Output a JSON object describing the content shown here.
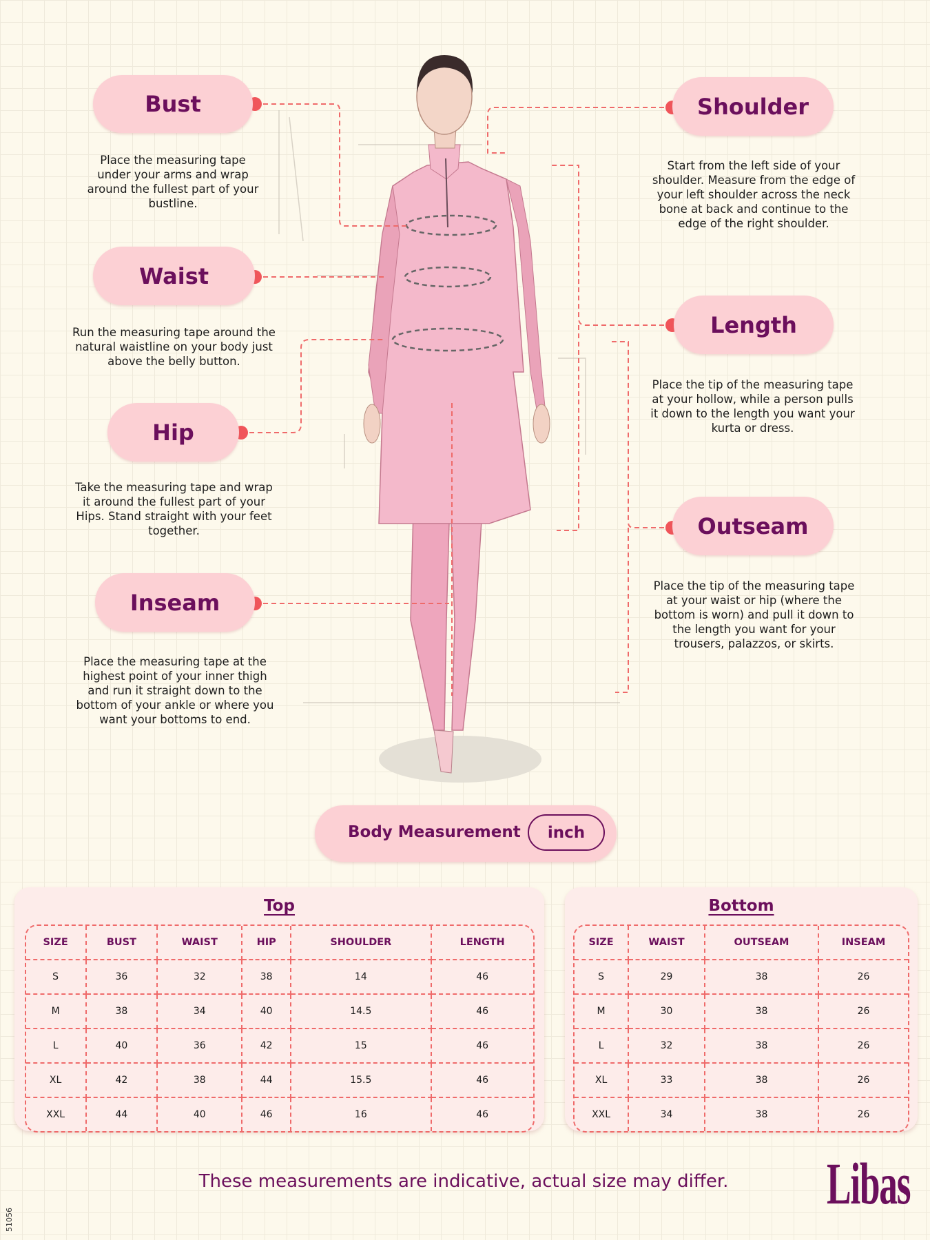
{
  "colors": {
    "background": "#fdf9ec",
    "pill": "#fcd0d4",
    "brand_purple": "#6b0f5c",
    "marker_red": "#f0555a",
    "dashed_line": "#ef6a6a"
  },
  "guides": {
    "bust": {
      "label": "Bust",
      "text": "Place the measuring tape under your arms and wrap around the fullest part of your bustline."
    },
    "waist": {
      "label": "Waist",
      "text": "Run the measuring tape around the natural waistline on your body just above the belly button."
    },
    "hip": {
      "label": "Hip",
      "text": "Take the measuring tape and wrap it around the fullest part of your Hips. Stand straight with your feet together."
    },
    "inseam": {
      "label": "Inseam",
      "text": "Place the measuring tape at the highest point of your inner thigh and run it straight down to the bottom of your ankle or where you want your bottoms to end."
    },
    "shoulder": {
      "label": "Shoulder",
      "text": "Start from the left side of your shoulder. Measure from the edge of your left shoulder across the neck bone at back and continue to the edge of the right shoulder."
    },
    "length": {
      "label": "Length",
      "text": "Place the tip of the measuring tape at your hollow, while a person pulls it down to the length you want your kurta or dress."
    },
    "outseam": {
      "label": "Outseam",
      "text": "Place the tip of the measuring tape at your waist or hip (where the bottom is worn) and pull it down to the length you want for your trousers, palazzos, or skirts."
    }
  },
  "body_measurement": {
    "label": "Body Measurement",
    "unit": "inch"
  },
  "top_table": {
    "title": "Top",
    "headers": [
      "SIZE",
      "BUST",
      "WAIST",
      "HIP",
      "SHOULDER",
      "LENGTH"
    ],
    "rows": [
      [
        "S",
        "36",
        "32",
        "38",
        "14",
        "46"
      ],
      [
        "M",
        "38",
        "34",
        "40",
        "14.5",
        "46"
      ],
      [
        "L",
        "40",
        "36",
        "42",
        "15",
        "46"
      ],
      [
        "XL",
        "42",
        "38",
        "44",
        "15.5",
        "46"
      ],
      [
        "XXL",
        "44",
        "40",
        "46",
        "16",
        "46"
      ]
    ]
  },
  "bottom_table": {
    "title": "Bottom",
    "headers": [
      "SIZE",
      "WAIST",
      "OUTSEAM",
      "INSEAM"
    ],
    "rows": [
      [
        "S",
        "29",
        "38",
        "26"
      ],
      [
        "M",
        "30",
        "38",
        "26"
      ],
      [
        "L",
        "32",
        "38",
        "26"
      ],
      [
        "XL",
        "33",
        "38",
        "26"
      ],
      [
        "XXL",
        "34",
        "38",
        "26"
      ]
    ]
  },
  "footer": {
    "note": "These measurements are indicative, actual size may differ.",
    "logo": "Libas",
    "code": "51056"
  }
}
